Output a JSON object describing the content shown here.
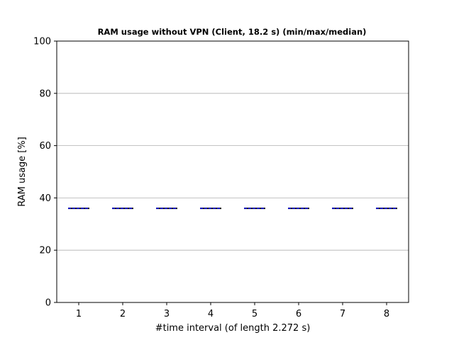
{
  "chart_data": {
    "type": "line",
    "title": "RAM usage without VPN (Client, 18.2 s) (min/max/median)",
    "xlabel": "#time interval (of length 2.272 s)",
    "ylabel": "RAM usage [%]",
    "categories": [
      "1",
      "2",
      "3",
      "4",
      "5",
      "6",
      "7",
      "8"
    ],
    "ylim": [
      0,
      100
    ],
    "yticks": [
      "0",
      "20",
      "40",
      "60",
      "80",
      "100"
    ],
    "grid": "horizontal",
    "series": [
      {
        "role": "min",
        "values": [
          35.9,
          35.9,
          35.9,
          35.9,
          35.9,
          35.9,
          35.9,
          35.9
        ],
        "color": "#000000"
      },
      {
        "role": "max",
        "values": [
          36.1,
          36.1,
          36.1,
          36.1,
          36.1,
          36.1,
          36.1,
          36.1
        ],
        "color": "#000000"
      },
      {
        "role": "median",
        "values": [
          36.0,
          36.0,
          36.0,
          36.0,
          36.0,
          36.0,
          36.0,
          36.0
        ],
        "color": "#0000cc"
      }
    ],
    "colors": {
      "median": "#0000cc",
      "minmax": "#000000",
      "grid": "#b0b0b0"
    }
  }
}
